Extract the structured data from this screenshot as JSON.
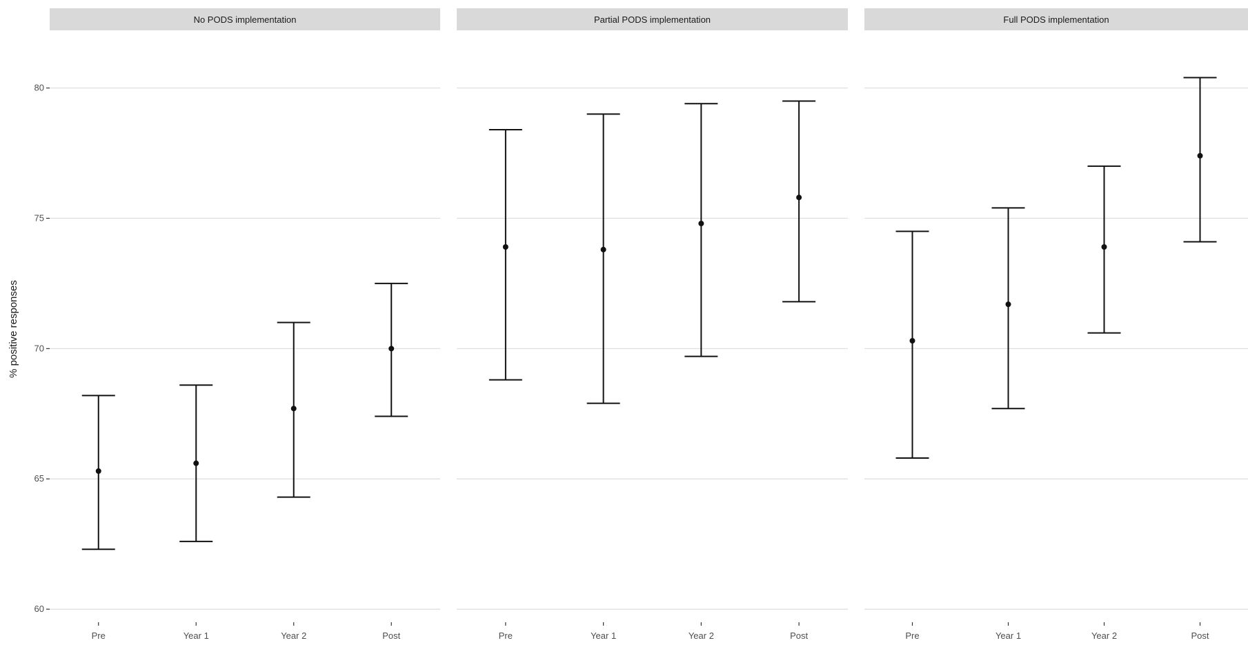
{
  "chart_data": {
    "type": "errorbar",
    "ylabel": "% positive responses",
    "xlabel": "",
    "categories": [
      "Pre",
      "Year 1",
      "Year 2",
      "Post"
    ],
    "ylim": [
      59.5,
      82
    ],
    "yticks": [
      60,
      65,
      70,
      75,
      80
    ],
    "grid": true,
    "facets": [
      {
        "label": "No PODS implementation",
        "points": [
          {
            "x": "Pre",
            "y": 65.3,
            "lower": 62.3,
            "upper": 68.2
          },
          {
            "x": "Year 1",
            "y": 65.6,
            "lower": 62.6,
            "upper": 68.6
          },
          {
            "x": "Year 2",
            "y": 67.7,
            "lower": 64.3,
            "upper": 71.0
          },
          {
            "x": "Post",
            "y": 70.0,
            "lower": 67.4,
            "upper": 72.5
          }
        ]
      },
      {
        "label": "Partial PODS implementation",
        "points": [
          {
            "x": "Pre",
            "y": 73.9,
            "lower": 68.8,
            "upper": 78.4
          },
          {
            "x": "Year 1",
            "y": 73.8,
            "lower": 67.9,
            "upper": 79.0
          },
          {
            "x": "Year 2",
            "y": 74.8,
            "lower": 69.7,
            "upper": 79.4
          },
          {
            "x": "Post",
            "y": 75.8,
            "lower": 71.8,
            "upper": 79.5
          }
        ]
      },
      {
        "label": "Full PODS implementation",
        "points": [
          {
            "x": "Pre",
            "y": 70.3,
            "lower": 65.8,
            "upper": 74.5
          },
          {
            "x": "Year 1",
            "y": 71.7,
            "lower": 67.7,
            "upper": 75.4
          },
          {
            "x": "Year 2",
            "y": 73.9,
            "lower": 70.6,
            "upper": 77.0
          },
          {
            "x": "Post",
            "y": 77.4,
            "lower": 74.1,
            "upper": 80.4
          }
        ]
      }
    ]
  },
  "colors": {
    "strip_bg": "#d9d9d9",
    "grid": "#dcdcdc",
    "ink": "#111111"
  }
}
